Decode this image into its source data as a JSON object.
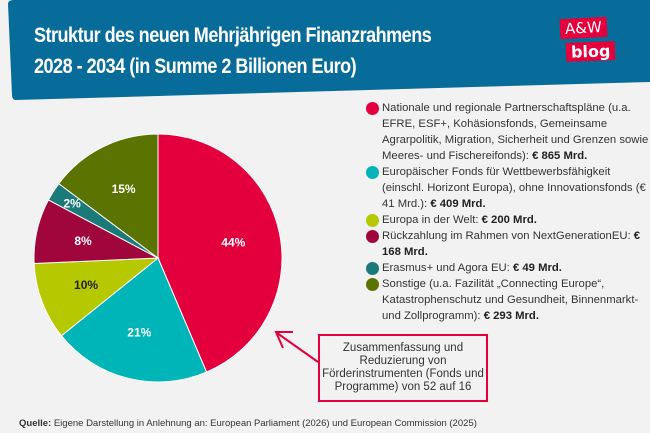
{
  "header": {
    "title_line1": "Struktur des neuen Mehrjährigen Finanzrahmens",
    "title_line2": "2028 - 2034 (in Summe 2 Billionen Euro)",
    "bg_color": "#086c9a"
  },
  "logo": {
    "line1": "A&W",
    "line2": "blog",
    "color": "#e4003c"
  },
  "chart_data": {
    "type": "pie",
    "start": "top",
    "direction": "clockwise",
    "slices": [
      {
        "label": "44%",
        "value": 865,
        "color": "#e4003c",
        "legend_text": "Nationale und regionale Partnerschaftspläne (u.a. EFRE, ESF+, Kohäsionsfonds, Gemeinsame Agrarpolitik, Migration, Sicherheit und Grenzen sowie Meeres- und Fischereifonds): ",
        "legend_amount": "€ 865 Mrd."
      },
      {
        "label": "21%",
        "value": 409,
        "color": "#00b5b8",
        "legend_text": "Europäischer Fonds für Wettbewerbsfähigkeit (einschl. Horizont Europa), ohne Innovationsfonds (€ 41 Mrd.): ",
        "legend_amount": "€ 409 Mrd."
      },
      {
        "label": "10%",
        "value": 200,
        "color": "#b5c800",
        "legend_text": "Europa in der Welt: ",
        "legend_amount": "€ 200 Mrd."
      },
      {
        "label": "8%",
        "value": 168,
        "color": "#a0063c",
        "legend_text": "Rückzahlung im Rahmen von NextGenerationEU: ",
        "legend_amount": "€ 168 Mrd."
      },
      {
        "label": "2%",
        "value": 49,
        "color": "#1a7a7a",
        "legend_text": "Erasmus+ und Agora EU: ",
        "legend_amount": "€ 49 Mrd."
      },
      {
        "label": "15%",
        "value": 293,
        "color": "#5b7300",
        "legend_text": "Sonstige (u.a. Fazilität „Connecting Europe“, Katastrophenschutz und Gesundheit, Binnenmarkt- und Zollprogramm): ",
        "legend_amount": "€ 293 Mrd."
      }
    ],
    "legend_placement": "right"
  },
  "callout": {
    "text": "Zusammenfassung und Reduzierung von Förderinstrumenten (Fonds und Programme) von 52 auf 16"
  },
  "source": {
    "label": "Quelle:",
    "text": " Eigene Darstellung in Anlehnung an: European Parliament (2026) und European Commission (2025)"
  }
}
